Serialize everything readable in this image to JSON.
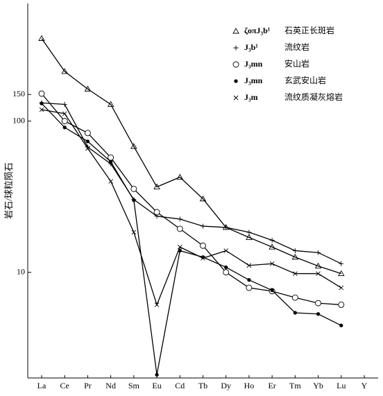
{
  "chart_data": {
    "type": "line",
    "y_label": "岩石/球粒陨石",
    "categories": [
      "La",
      "Ce",
      "Pr",
      "Nd",
      "Sm",
      "Eu",
      "Cd",
      "Tb",
      "Dy",
      "Ho",
      "Er",
      "Tm",
      "Yb",
      "Lu",
      "Y"
    ],
    "log_y": true,
    "ylim": [
      2,
      600
    ],
    "yticks": [
      10,
      100,
      150
    ],
    "legend": "top-right",
    "series": [
      {
        "name": "ζoπJ₃b¹",
        "rock": "石英正长斑岩",
        "marker": "triangle",
        "color": "#000",
        "values": [
          352,
          213,
          163,
          129,
          68,
          36.7,
          42.6,
          30.6,
          19.8,
          17,
          14.7,
          12.6,
          11,
          9.8,
          null
        ]
      },
      {
        "name": "J₃b¹",
        "rock": "流纹岩",
        "marker": "plus",
        "color": "#000",
        "values": [
          132,
          129,
          67.4,
          52.2,
          30.3,
          23.5,
          22.5,
          20.2,
          19.8,
          18.4,
          16.3,
          13.9,
          13.5,
          11.4,
          null
        ]
      },
      {
        "name": "J₃mn",
        "rock": "安山岩",
        "marker": "circle",
        "color": "#000",
        "values": [
          152,
          100,
          83.4,
          57.4,
          35.6,
          25,
          19.4,
          15,
          10,
          7.9,
          7.5,
          6.8,
          6.25,
          6.1,
          null
        ]
      },
      {
        "name": "J₃mn",
        "rock": "玄武安山岩",
        "marker": "dot",
        "color": "#000",
        "values": [
          131,
          90.8,
          73.4,
          53.9,
          30,
          2.1,
          13.9,
          12.6,
          10.8,
          8.9,
          7.6,
          5.4,
          5.3,
          4.45,
          null
        ]
      },
      {
        "name": "J₃m",
        "rock": "流纹质凝灰熔岩",
        "marker": "cross",
        "color": "#000",
        "values": [
          119,
          112,
          66,
          40,
          18.4,
          6.1,
          14.7,
          12.4,
          13.9,
          11.1,
          11.4,
          9.8,
          9.8,
          7.9,
          null
        ]
      }
    ]
  }
}
